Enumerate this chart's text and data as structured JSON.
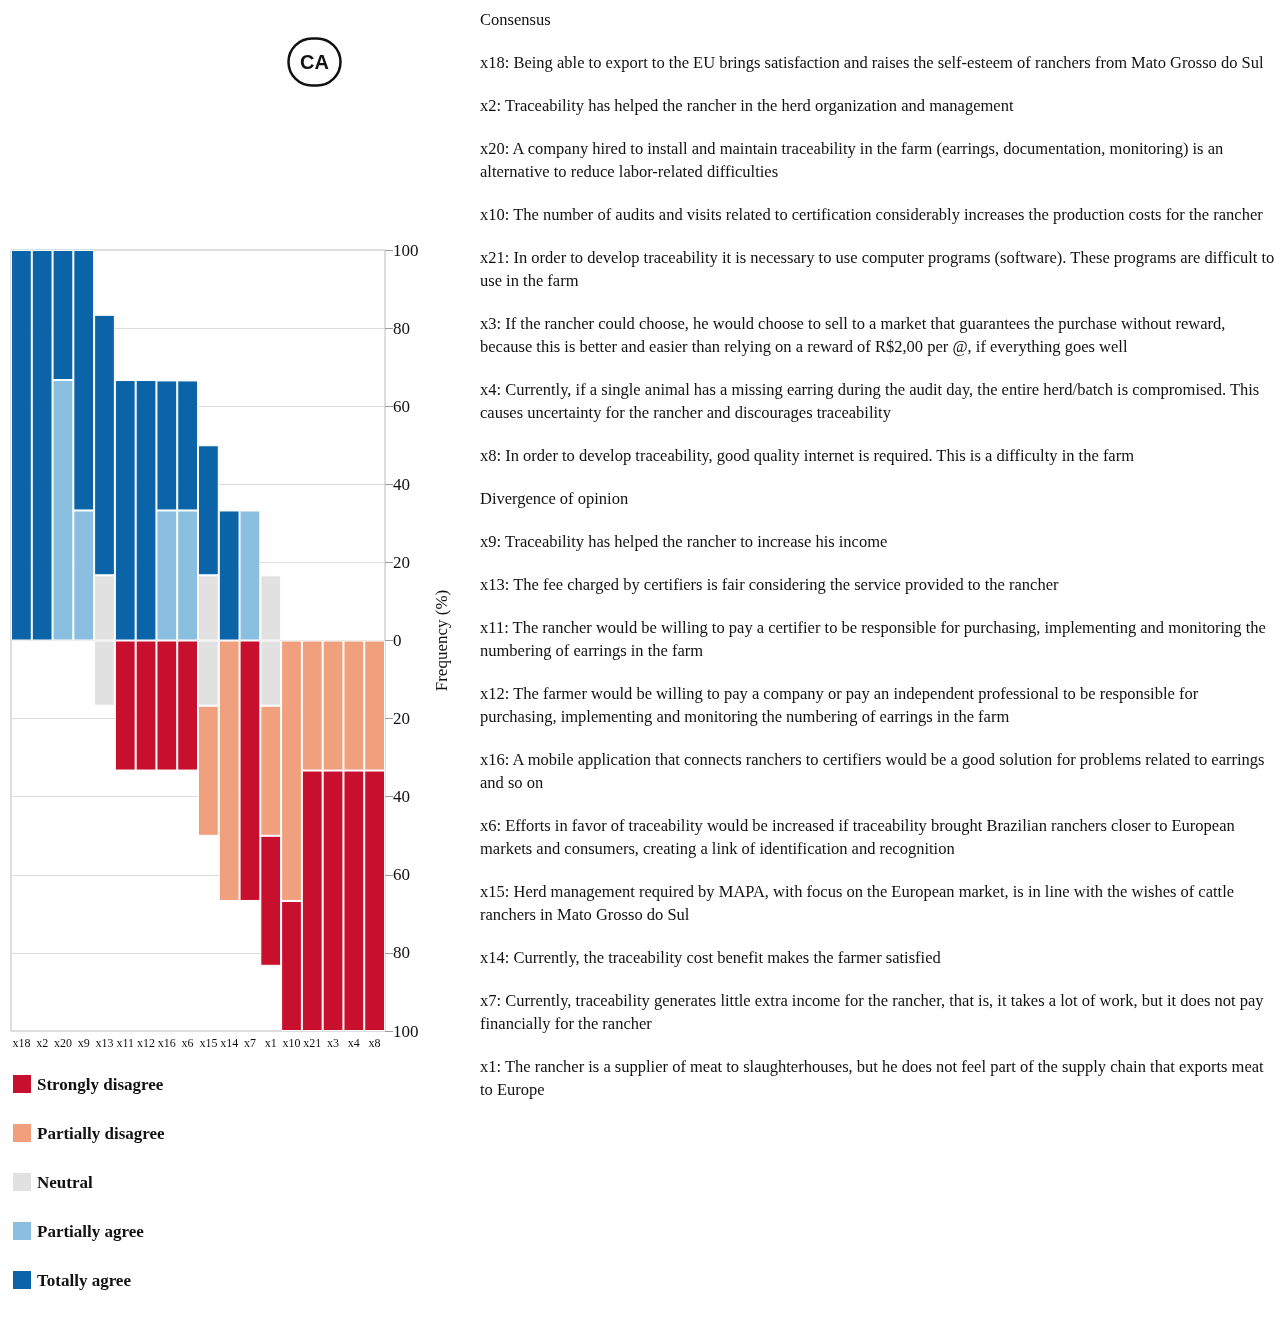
{
  "chart_data": {
    "type": "bar",
    "title": "CA",
    "ylabel": "Frequency (%)",
    "stacked": true,
    "grid": "y",
    "legend": "bottom left",
    "categories": [
      "x18",
      "x2",
      "x20",
      "x9",
      "x13",
      "x11",
      "x12",
      "x16",
      "x6",
      "x15",
      "x14",
      "x7",
      "x1",
      "x10",
      "x21",
      "x3",
      "x4",
      "x8"
    ],
    "series": [
      {
        "name": "Neutral",
        "color": "#e1e1e1",
        "values": [
          null,
          null,
          null,
          null,
          16.7,
          null,
          null,
          null,
          null,
          16.7,
          null,
          null,
          16.7,
          null,
          null,
          null,
          null,
          null
        ]
      },
      {
        "color": "#e1e1e1",
        "values": [
          null,
          null,
          null,
          null,
          -16.7,
          null,
          null,
          null,
          null,
          -16.7,
          null,
          null,
          -16.7,
          null,
          null,
          null,
          null,
          null
        ]
      },
      {
        "name": "Partially agree",
        "color": "#8bbfdf",
        "values": [
          null,
          null,
          66.7,
          33.3,
          null,
          null,
          null,
          33.3,
          33.3,
          null,
          null,
          33.3,
          null,
          null,
          null,
          null,
          null,
          null
        ]
      },
      {
        "name": "Partially disagree",
        "color": "#f0a07c",
        "values": [
          null,
          null,
          null,
          null,
          null,
          null,
          null,
          null,
          null,
          -33.3,
          -66.7,
          null,
          -33.3,
          -66.7,
          -33.3,
          -33.3,
          -33.3,
          -33.3
        ]
      },
      {
        "name": "Totally agree",
        "color": "#0b64a8",
        "values": [
          100,
          100,
          33.3,
          66.7,
          66.7,
          66.7,
          66.7,
          33.3,
          33.3,
          33.3,
          33.3,
          null,
          null,
          null,
          null,
          null,
          null,
          null
        ]
      },
      {
        "name": "Strongly disagree",
        "color": "#c8102e",
        "values": [
          null,
          null,
          null,
          null,
          null,
          -33.3,
          -33.3,
          -33.3,
          -33.3,
          null,
          null,
          -66.7,
          -33.3,
          -33.3,
          -66.7,
          -66.7,
          -66.7,
          -66.7
        ]
      }
    ],
    "ylim": [
      -100,
      100
    ],
    "yticks": [
      {
        "value": -100,
        "label": "100"
      },
      {
        "value": -80,
        "label": "80"
      },
      {
        "value": -60,
        "label": "60"
      },
      {
        "value": -40,
        "label": "40"
      },
      {
        "value": -20,
        "label": "20"
      },
      0,
      20,
      40,
      60,
      80,
      100
    ],
    "annotations": [
      "Consensus",
      "x18: Being able to export to the EU brings satisfaction and raises the self-esteem of ranchers from Mato Grosso  do Sul",
      "x2: Traceability has helped the rancher in the herd organization and management",
      "x20: A company hired to install and maintain traceability in the farm (earrings, documentation, monitoring) is an alternative to reduce labor-related difficulties",
      "x10: The number of audits and visits related to certification considerably increases the production costs for the  rancher",
      "x21: In order to develop traceability it is necessary to use computer programs (software). These programs are difficult to use in the farm",
      "x3: If the rancher could choose, he would choose to sell to a market that guarantees the purchase without reward, because this is better and easier than relying on a reward of R$2,00 per @, if everything goes well",
      "x4: Currently, if a single animal has a missing earring during the audit day, the entire herd/batch is compromised. This causes uncertainty for the rancher and discourages traceability",
      "x8: In order to develop traceability, good quality internet is required. This is a difficulty in the farm",
      "Divergence of opinion",
      "x9: Traceability has helped the rancher to increase his income",
      "x13: The fee charged by certifiers is fair considering the service provided to the rancher",
      "x11: The rancher would be willing to pay a certifier to be responsible for purchasing, implementing and monitoring the numbering of earrings in the farm",
      "x12: The farmer would be willing to pay a company or pay an independent professional to be responsible for purchasing, implementing and monitoring the numbering of earrings in the farm",
      "x16: A mobile application that connects ranchers to certifiers would be a good solution for problems related to earrings and so on",
      "x6: Efforts in favor of traceability would be increased if traceability brought Brazilian ranchers closer to European markets and consumers, creating a link of identification and recognition",
      "x15: Herd management required by MAPA, with focus on the European market, is in line with the wishes of cattle ranchers in Mato Grosso do Sul",
      "x14: Currently, the traceability cost benefit makes the farmer satisfied",
      "x7: Currently, traceability generates little extra income for the rancher, that is, it takes a lot of work, but it does not pay financially for the rancher",
      "x1: The rancher is a supplier of meat to slaughterhouses, but he does not feel part of the supply chain that exports meat to Europe"
    ]
  }
}
